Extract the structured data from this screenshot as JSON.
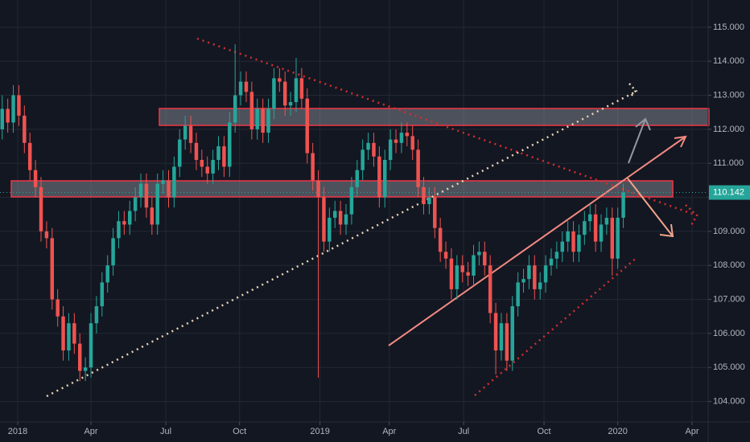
{
  "chart_data": {
    "type": "candlestick",
    "up_color": "#26a69a",
    "down_color": "#ef5350",
    "xlim": [
      -0.4,
      127.3
    ],
    "xticks": [
      {
        "value": 2.8,
        "label": "2018"
      },
      {
        "value": 16.0,
        "label": "Apr"
      },
      {
        "value": 29.5,
        "label": "Jul"
      },
      {
        "value": 42.8,
        "label": "Oct"
      },
      {
        "value": 57.3,
        "label": "2019"
      },
      {
        "value": 69.8,
        "label": "Apr"
      },
      {
        "value": 83.2,
        "label": "Jul"
      },
      {
        "value": 97.7,
        "label": "Oct"
      },
      {
        "value": 111.0,
        "label": "2020"
      },
      {
        "value": 124.4,
        "label": "Apr"
      }
    ],
    "ylim": [
      103.4,
      115.8
    ],
    "yticks": [
      {
        "value": 104,
        "label": "104.000"
      },
      {
        "value": 105,
        "label": "105.000"
      },
      {
        "value": 106,
        "label": "106.000"
      },
      {
        "value": 107,
        "label": "107.000"
      },
      {
        "value": 108,
        "label": "108.000"
      },
      {
        "value": 109,
        "label": "109.000"
      },
      {
        "value": 110,
        "label": "110.000"
      },
      {
        "value": 111,
        "label": "111.000"
      },
      {
        "value": 112,
        "label": "112.000"
      },
      {
        "value": 113,
        "label": "113.000"
      },
      {
        "value": 114,
        "label": "114.000"
      },
      {
        "value": 115,
        "label": "115.000"
      }
    ],
    "grid": true,
    "last_price": 110.142,
    "open": [
      112.0,
      112.6,
      112.2,
      113.0,
      112.4,
      111.6,
      110.8,
      110.3,
      109.0,
      108.8,
      107.0,
      106.5,
      105.5,
      106.3,
      105.7,
      104.9,
      105.0,
      106.3,
      106.8,
      107.5,
      108.0,
      108.8,
      109.3,
      109.2,
      109.6,
      110.0,
      110.4,
      109.7,
      109.2,
      110.4,
      110.5,
      110.0,
      110.9,
      111.7,
      112.1,
      111.6,
      111.1,
      110.9,
      110.7,
      111.1,
      111.5,
      110.9,
      112.2,
      113.0,
      113.4,
      113.1,
      112.0,
      112.6,
      111.9,
      112.6,
      113.5,
      113.4,
      112.7,
      112.8,
      113.5,
      112.9,
      111.3,
      110.5,
      110.0,
      108.7,
      109.4,
      109.6,
      109.2,
      109.5,
      110.3,
      110.8,
      111.4,
      111.6,
      111.2,
      110.0,
      111.1,
      111.7,
      111.6,
      111.9,
      111.8,
      111.4,
      110.3,
      109.8,
      110.0,
      109.1,
      108.4,
      108.2,
      107.3,
      108.0,
      107.8,
      107.7,
      108.3,
      108.4,
      108.0,
      106.6,
      105.5,
      106.3,
      105.2,
      106.8,
      107.5,
      107.6,
      108.0,
      107.3,
      107.5,
      108.0,
      108.2,
      108.4,
      108.7,
      109.0,
      108.4,
      108.9,
      109.3,
      109.5,
      108.7,
      109.2,
      109.4,
      108.2,
      109.4
    ],
    "high": [
      113.0,
      112.9,
      113.3,
      113.3,
      112.7,
      111.9,
      111.1,
      110.6,
      109.3,
      109.1,
      107.3,
      106.8,
      106.6,
      106.6,
      106.0,
      105.3,
      106.6,
      107.1,
      107.8,
      108.3,
      109.1,
      109.6,
      109.6,
      109.9,
      110.3,
      110.7,
      110.7,
      110.0,
      110.7,
      110.8,
      110.8,
      111.2,
      112.0,
      112.4,
      112.4,
      111.9,
      111.4,
      111.2,
      111.4,
      111.8,
      111.8,
      112.5,
      114.5,
      113.7,
      113.7,
      113.4,
      112.9,
      112.9,
      112.9,
      113.8,
      113.8,
      113.7,
      113.1,
      114.1,
      113.8,
      113.2,
      111.6,
      110.8,
      110.3,
      109.7,
      109.9,
      109.9,
      109.8,
      110.6,
      111.1,
      111.7,
      111.9,
      111.9,
      111.5,
      111.4,
      112.0,
      112.0,
      112.2,
      112.2,
      112.1,
      111.7,
      110.6,
      110.3,
      110.3,
      109.4,
      108.7,
      108.5,
      108.3,
      108.3,
      108.1,
      108.6,
      108.7,
      108.7,
      108.3,
      106.9,
      106.6,
      106.6,
      107.1,
      107.8,
      107.9,
      108.3,
      108.3,
      107.8,
      108.3,
      108.5,
      108.7,
      109.0,
      109.3,
      109.3,
      109.2,
      109.6,
      109.8,
      109.8,
      109.5,
      109.7,
      109.7,
      109.7,
      110.4
    ],
    "low": [
      111.7,
      111.9,
      111.9,
      112.1,
      111.3,
      110.5,
      110.0,
      108.7,
      108.5,
      106.7,
      106.2,
      105.2,
      105.2,
      105.4,
      104.6,
      104.6,
      104.7,
      106.0,
      106.5,
      107.2,
      107.7,
      108.5,
      108.9,
      108.9,
      109.3,
      109.7,
      109.4,
      108.9,
      108.9,
      110.1,
      109.7,
      109.7,
      110.6,
      111.4,
      111.3,
      110.8,
      110.6,
      110.4,
      110.4,
      110.8,
      110.6,
      110.6,
      111.9,
      112.7,
      112.8,
      111.7,
      111.7,
      111.6,
      111.6,
      112.3,
      113.1,
      112.4,
      112.4,
      112.5,
      112.6,
      111.0,
      110.2,
      104.7,
      108.4,
      108.4,
      109.1,
      108.9,
      108.9,
      109.2,
      110.0,
      110.5,
      111.1,
      110.9,
      109.7,
      109.7,
      110.8,
      111.3,
      111.3,
      111.5,
      111.1,
      110.0,
      109.5,
      109.5,
      108.8,
      108.1,
      107.9,
      107.0,
      107.0,
      107.5,
      107.4,
      107.4,
      108.0,
      107.7,
      106.3,
      104.8,
      105.2,
      104.9,
      104.9,
      106.5,
      107.2,
      107.3,
      107.0,
      107.0,
      107.2,
      107.7,
      107.9,
      108.1,
      108.4,
      108.1,
      108.1,
      108.6,
      109.0,
      108.4,
      108.4,
      108.9,
      107.7,
      107.9,
      109.1
    ],
    "close": [
      112.6,
      112.2,
      113.0,
      112.4,
      111.6,
      110.8,
      110.3,
      109.0,
      108.8,
      107.0,
      106.5,
      105.5,
      106.3,
      105.7,
      104.9,
      105.0,
      106.3,
      106.8,
      107.5,
      108.0,
      108.8,
      109.3,
      109.2,
      109.6,
      110.0,
      110.4,
      109.7,
      109.2,
      110.4,
      110.5,
      110.0,
      110.9,
      111.7,
      112.1,
      111.6,
      111.1,
      110.9,
      110.7,
      111.1,
      111.5,
      110.9,
      112.2,
      113.0,
      113.4,
      113.1,
      112.0,
      112.6,
      111.9,
      112.6,
      113.5,
      113.4,
      112.7,
      112.8,
      113.5,
      112.9,
      111.3,
      110.5,
      110.0,
      108.7,
      109.4,
      109.6,
      109.2,
      109.5,
      110.3,
      110.8,
      111.4,
      111.6,
      111.2,
      110.0,
      111.1,
      111.7,
      111.6,
      111.9,
      111.8,
      111.4,
      110.3,
      109.8,
      110.0,
      109.1,
      108.4,
      108.2,
      107.3,
      108.0,
      107.8,
      107.7,
      108.3,
      108.4,
      108.0,
      106.6,
      105.5,
      106.3,
      105.2,
      106.8,
      107.5,
      107.6,
      108.0,
      107.3,
      107.5,
      108.0,
      108.2,
      108.4,
      108.7,
      109.0,
      108.4,
      108.9,
      109.3,
      109.5,
      108.7,
      109.2,
      109.4,
      108.2,
      109.4,
      110.142
    ]
  }
}
